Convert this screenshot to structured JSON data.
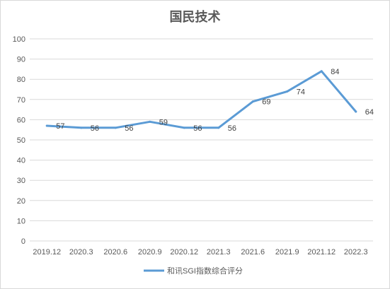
{
  "chart_data": {
    "type": "line",
    "title": "国民技术",
    "categories": [
      "2019.12",
      "2020.3",
      "2020.6",
      "2020.9",
      "2020.12",
      "2021.3",
      "2021.6",
      "2021.9",
      "2021.12",
      "2022.3"
    ],
    "series": [
      {
        "name": "和讯SGI指数综合评分",
        "values": [
          57,
          56,
          56,
          59,
          56,
          56,
          69,
          74,
          84,
          64
        ]
      }
    ],
    "y_ticks": [
      "0",
      "10",
      "20",
      "30",
      "40",
      "50",
      "60",
      "70",
      "80",
      "90",
      "100"
    ],
    "ylim": [
      0,
      100
    ],
    "grid": "horizontal",
    "legend_position": "bottom",
    "colors": {
      "line": "#5b9bd5",
      "grid": "#d9d9d9",
      "text": "#595959"
    }
  }
}
